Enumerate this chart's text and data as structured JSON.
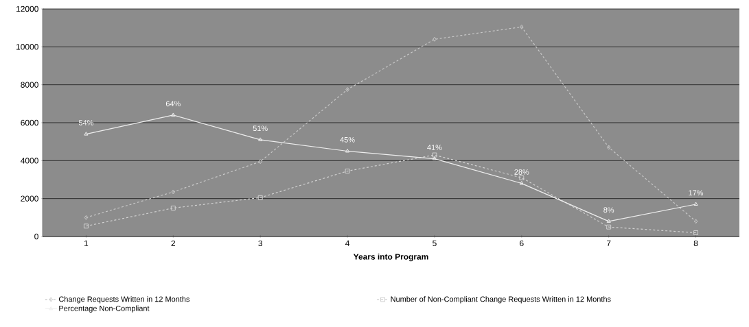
{
  "chart_data": {
    "type": "line",
    "xlabel": "Years into Program",
    "categories": [
      "1",
      "2",
      "3",
      "4",
      "5",
      "6",
      "7",
      "8"
    ],
    "ylim": [
      0,
      12000
    ],
    "yticks": [
      0,
      2000,
      4000,
      6000,
      8000,
      10000,
      12000
    ],
    "y2lim": [
      0,
      120
    ],
    "grid": "y",
    "legend": "bottom",
    "series": [
      {
        "name": "Change Requests Written in 12 Months",
        "color": "#c8c8c8",
        "marker": "diamond",
        "line_style": "dashed",
        "values": [
          1000,
          2350,
          3950,
          7750,
          10400,
          11050,
          4700,
          800
        ]
      },
      {
        "name": "Number of Non-Compliant Change Requests Written in 12 Months",
        "color": "#d2d2d2",
        "marker": "square",
        "line_style": "dashed",
        "values": [
          550,
          1500,
          2050,
          3450,
          4300,
          3100,
          500,
          200
        ]
      },
      {
        "name": "Percentage Non-Compliant",
        "color": "#eeeeee",
        "marker": "triangle",
        "line_style": "solid",
        "axis": "y2",
        "values": [
          54,
          64,
          51,
          45,
          41,
          28,
          8,
          17
        ],
        "value_labels": [
          "54%",
          "64%",
          "51%",
          "45%",
          "41%",
          "28%",
          "8%",
          "17%"
        ]
      }
    ]
  }
}
